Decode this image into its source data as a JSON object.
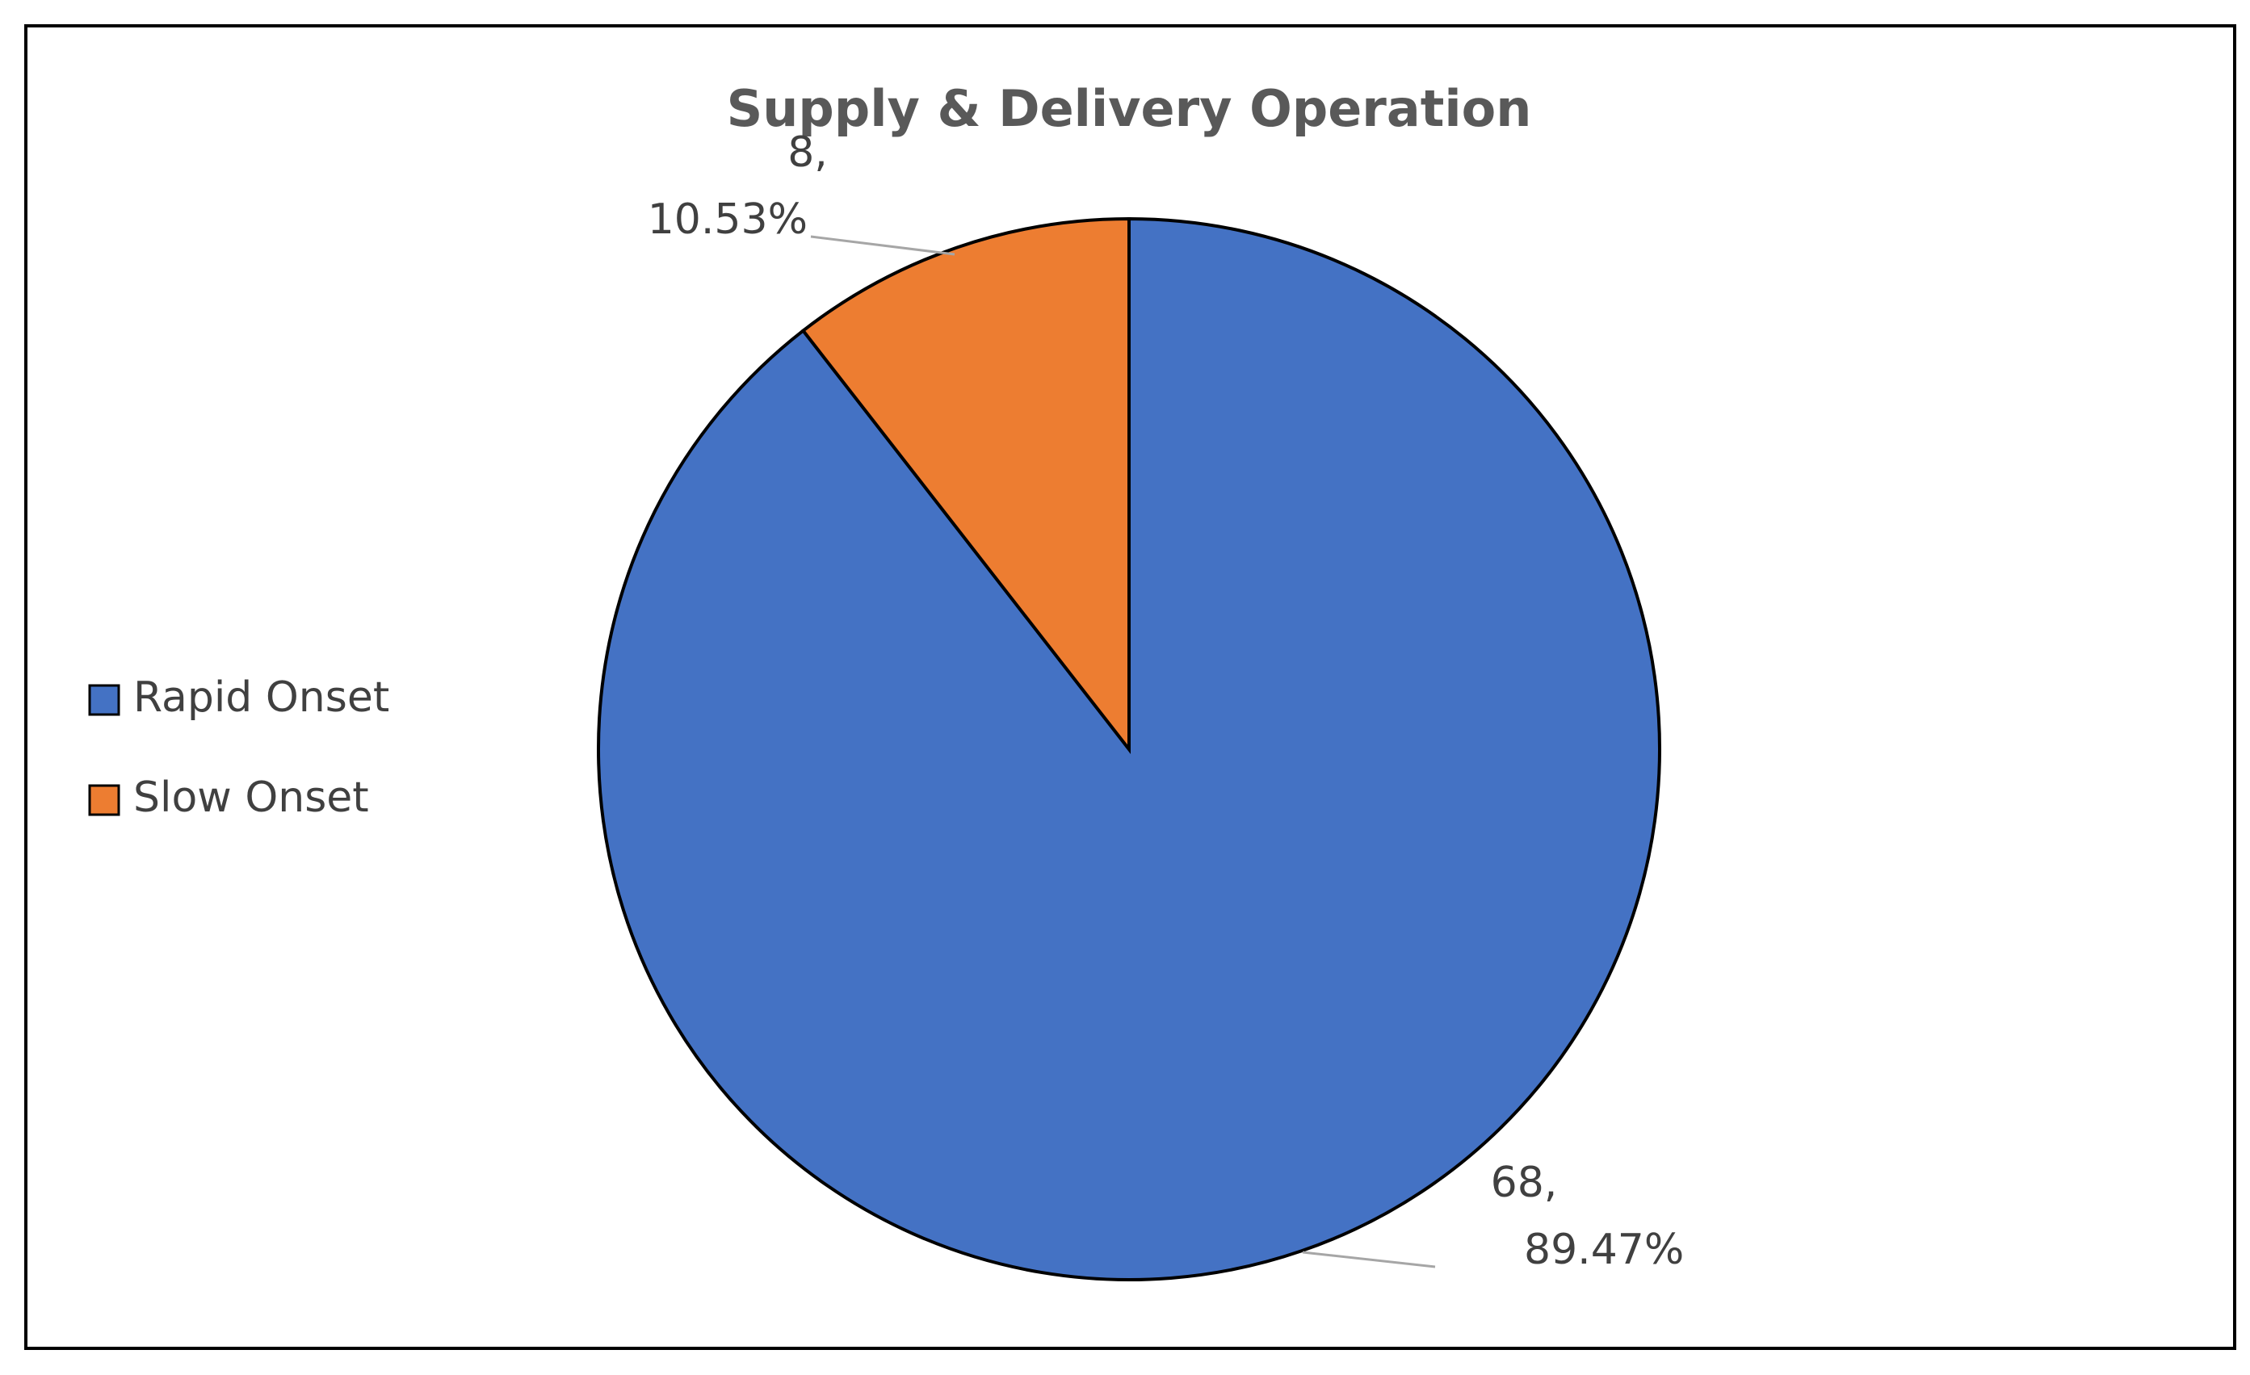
{
  "chart_data": {
    "type": "pie",
    "title": "Supply & Delivery Operation",
    "categories": [
      "Rapid Onset",
      "Slow Onset"
    ],
    "values": [
      68,
      8
    ],
    "value_labels": [
      [
        "68,",
        "89.47%"
      ],
      [
        "8,",
        "10.53%"
      ]
    ],
    "colors": [
      "#4472c4",
      "#ed7d31"
    ],
    "legend": "left"
  }
}
